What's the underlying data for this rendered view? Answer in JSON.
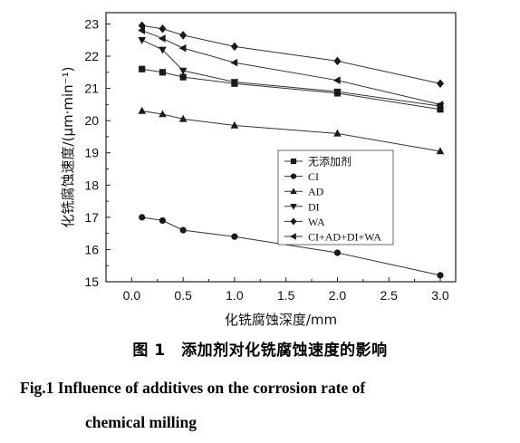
{
  "chart_data": {
    "type": "line",
    "xlabel": "化铣腐蚀深度/mm",
    "ylabel": "化铣腐蚀速度/(μm·min⁻¹)",
    "xlim": [
      -0.25,
      3.15
    ],
    "ylim": [
      15,
      23.35
    ],
    "xticks": [
      "0.0",
      "0.5",
      "1.0",
      "1.5",
      "2.0",
      "2.5",
      "3.0"
    ],
    "yticks": [
      "15",
      "16",
      "17",
      "18",
      "19",
      "20",
      "21",
      "22",
      "23"
    ],
    "x": [
      0.1,
      0.3,
      0.5,
      1.0,
      2.0,
      3.0
    ],
    "legend_position": "center-right",
    "series": [
      {
        "name": "无添加剂",
        "marker": "square",
        "values": [
          21.6,
          21.5,
          21.35,
          21.15,
          20.85,
          20.35
        ]
      },
      {
        "name": "CI",
        "marker": "circle",
        "values": [
          17.0,
          16.9,
          16.6,
          16.4,
          15.9,
          15.2
        ]
      },
      {
        "name": "AD",
        "marker": "triangle-up",
        "values": [
          20.3,
          20.2,
          20.05,
          19.85,
          19.6,
          19.05
        ]
      },
      {
        "name": "DI",
        "marker": "triangle-down",
        "values": [
          22.5,
          22.2,
          21.55,
          21.2,
          20.9,
          20.45
        ]
      },
      {
        "name": "WA",
        "marker": "diamond",
        "values": [
          22.95,
          22.85,
          22.65,
          22.3,
          21.85,
          21.15
        ]
      },
      {
        "name": "CI+AD+DI+WA",
        "marker": "triangle-left",
        "values": [
          22.8,
          22.55,
          22.25,
          21.8,
          21.25,
          20.5
        ]
      }
    ]
  },
  "captions": {
    "cn": "图 1　添加剂对化铣腐蚀速度的影响",
    "en_line1": "Fig.1    Influence of additives on the corrosion rate of",
    "en_line2": "chemical milling"
  }
}
